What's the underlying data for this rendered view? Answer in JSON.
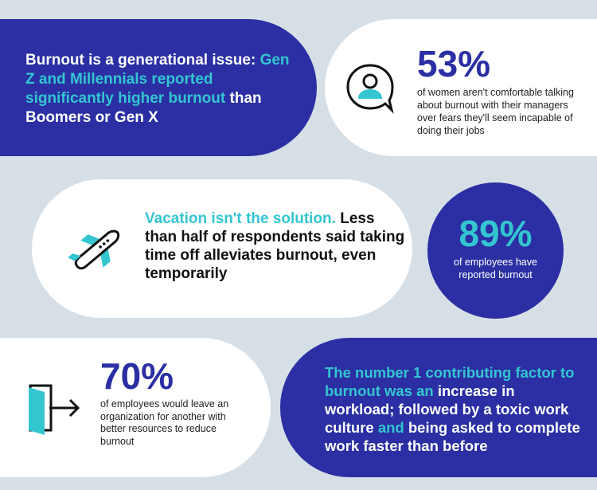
{
  "card1": {
    "line_white_1": "Burnout is a generational issue:",
    "line_teal": "Gen Z and Millennials reported significantly higher burnout",
    "line_white_2": "than Boomers or Gen X"
  },
  "card2": {
    "stat": "53%",
    "description": "of women aren't comfortable talking about burnout with their managers over fears they'll seem incapable of doing their jobs",
    "icon": "person-speech-bubble-icon"
  },
  "card3": {
    "headline_teal": "Vacation isn't the solution.",
    "body": "Less than half of respondents said taking time off alleviates burnout, even temporarily",
    "icon": "airplane-icon"
  },
  "card4": {
    "stat": "89%",
    "description": "of employees have reported burnout"
  },
  "card5": {
    "stat": "70%",
    "description": "of employees would leave an organization for another with better resources to reduce burnout",
    "icon": "exit-door-icon"
  },
  "card6": {
    "teal_1": "The number 1 contributing factor to burnout was an",
    "white_1": " increase in workload; followed by a toxic work culture",
    "teal_2": " and",
    "white_2": " being asked to complete work faster than before"
  },
  "colors": {
    "background": "#d6dfe6",
    "navy": "#2b2fa3",
    "teal": "#33c6d0",
    "white": "#ffffff"
  }
}
